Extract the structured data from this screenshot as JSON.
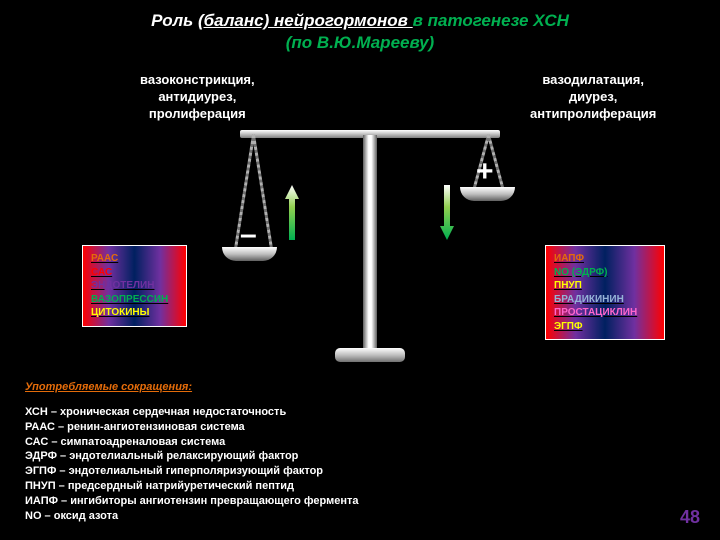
{
  "title": {
    "part1": "Роль ",
    "part2": "(баланс) нейрогормонов ",
    "part3": "в патогенезе ХСН",
    "line2": "(по В.Ю.Марееву)"
  },
  "labels": {
    "left": "вазоконстрикция,\nантидиурез,\nпролиферация",
    "right": "вазодилатация,\nдиурез,\nантипролиферация"
  },
  "signs": {
    "minus": "–",
    "plus": "+"
  },
  "box_left": {
    "items": [
      {
        "text": "РААС",
        "color": "#e46c0a"
      },
      {
        "text": "САС",
        "color": "#ff0000",
        "underline": false
      },
      {
        "text": "ЭНДОТЕЛИН",
        "color": "#7030a0"
      },
      {
        "text": "ВАЗОПРЕССИН",
        "color": "#00b050"
      },
      {
        "text": "ЦИТОКИНЫ",
        "color": "#ffff00"
      }
    ]
  },
  "box_right": {
    "items": [
      {
        "text": "ИАПФ",
        "color": "#e46c0a"
      },
      {
        "text": "NO (ЭДРФ)",
        "color": "#00b050"
      },
      {
        "text": "ПНУП",
        "color": "#ffff00"
      },
      {
        "text": "БРАДИКИНИН",
        "color": "#95b3d7"
      },
      {
        "text": "ПРОСТАЦИКЛИН",
        "color": "#ff66cc"
      },
      {
        "text": "ЭГПФ",
        "color": "#ffff00"
      }
    ]
  },
  "abbrev": {
    "title": "Употребляемые сокращения:",
    "lines": [
      "ХСН – хроническая сердечная недостаточность",
      "РААС – ренин-ангиотензиновая система",
      "САС – симпатоадреналовая система",
      "ЭДРФ – эндотелиальный релаксирующий фактор",
      "ЭГПФ – эндотелиальный гиперполяризующий фактор",
      "ПНУП – предсердный натрийуретический пептид",
      "ИАПФ – ингибиторы ангиотензин превращающего фермента",
      "NO – оксид азота"
    ]
  },
  "page": "48",
  "arrow_gradient": {
    "top": "#ffffff",
    "mid": "#92d050",
    "bottom": "#00b050"
  }
}
